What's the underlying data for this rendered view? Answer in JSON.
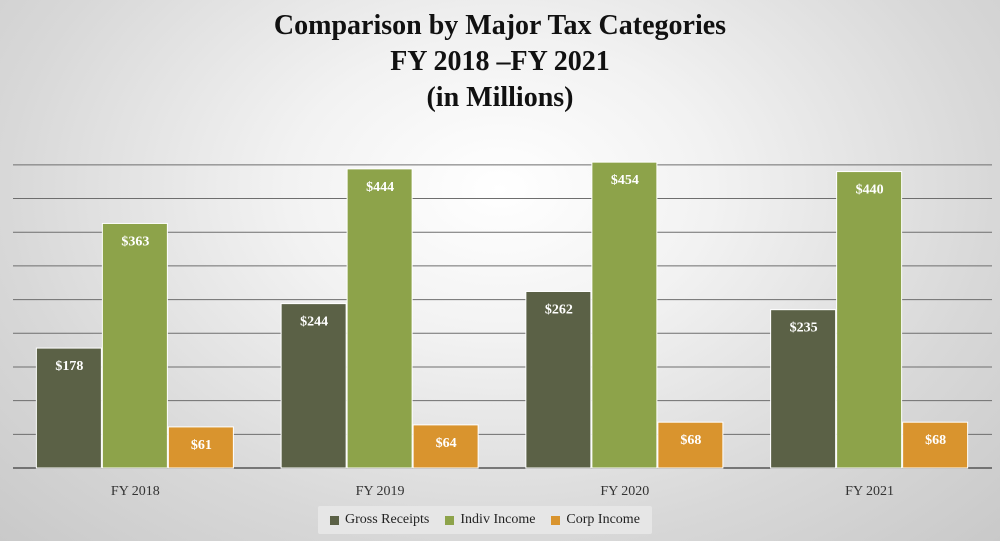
{
  "chart_data": {
    "type": "bar",
    "title_lines": [
      "Comparison by Major Tax Categories",
      "FY 2018 –FY 2021",
      "(in Millions)"
    ],
    "categories": [
      "FY 2018",
      "FY 2019",
      "FY 2020",
      "FY 2021"
    ],
    "series": [
      {
        "name": "Gross Receipts",
        "values": [
          178,
          244,
          262,
          235
        ],
        "labels": [
          "$178",
          "$244",
          "$262",
          "$235"
        ],
        "color": "#5b6146"
      },
      {
        "name": "Indiv Income",
        "values": [
          363,
          444,
          454,
          440
        ],
        "labels": [
          "$363",
          "$444",
          "$454",
          "$440"
        ],
        "color": "#8da34a"
      },
      {
        "name": "Corp Income",
        "values": [
          61,
          64,
          68,
          68
        ],
        "labels": [
          "$61",
          "$64",
          "$68",
          "$68"
        ],
        "color": "#d9942e"
      }
    ],
    "ylim": [
      0,
      450
    ],
    "grid": true,
    "legend_position": "bottom"
  }
}
